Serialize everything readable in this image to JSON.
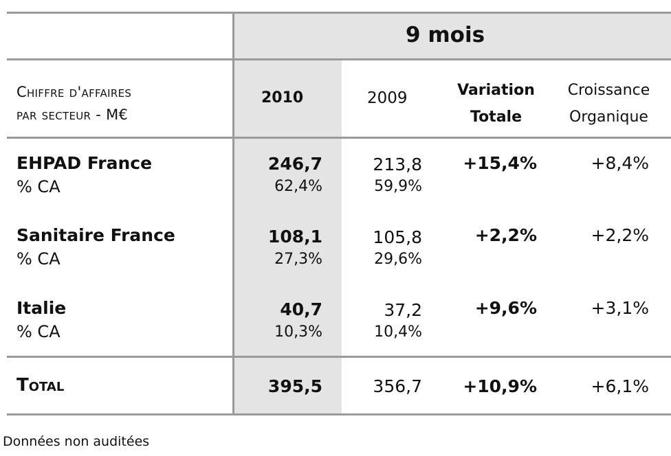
{
  "period_header": "9 mois",
  "header": {
    "label_line1": "Chiffre d'affaires",
    "label_line2": "par secteur - M€",
    "col_2010": "2010",
    "col_2009": "2009",
    "col_variation": "Variation Totale",
    "col_croissance": "Croissance Organique"
  },
  "rows": [
    {
      "name": "EHPAD France",
      "sub": "% CA",
      "v2010": "246,7",
      "p2010": "62,4%",
      "v2009": "213,8",
      "p2009": "59,9%",
      "variation": "+15,4%",
      "organique": "+8,4%"
    },
    {
      "name": "Sanitaire France",
      "sub": "% CA",
      "v2010": "108,1",
      "p2010": "27,3%",
      "v2009": "105,8",
      "p2009": "29,6%",
      "variation": "+2,2%",
      "organique": "+2,2%"
    },
    {
      "name": "Italie",
      "sub": "% CA",
      "v2010": "40,7",
      "p2010": "10,3%",
      "v2009": "37,2",
      "p2009": "10,4%",
      "variation": "+9,6%",
      "organique": "+3,1%"
    }
  ],
  "total": {
    "label": "Total",
    "v2010": "395,5",
    "v2009": "356,7",
    "variation": "+10,9%",
    "organique": "+6,1%"
  },
  "footnote": "Données non auditées",
  "colors": {
    "shade": "#e4e4e4",
    "rule": "#9a9a9a"
  }
}
